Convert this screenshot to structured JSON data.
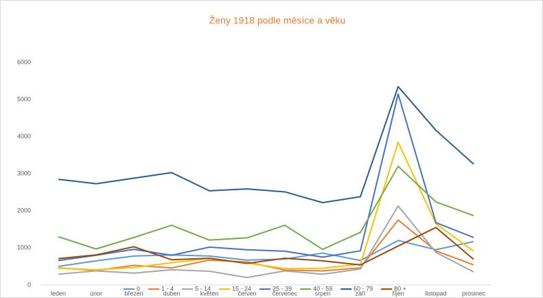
{
  "chart_data": {
    "type": "line",
    "title": "Ženy 1918 podle měsíce a věku",
    "categories": [
      "leden",
      "únor",
      "březen",
      "duben",
      "květen",
      "červen",
      "červenec",
      "srpen",
      "září",
      "říjen",
      "listopad",
      "prosinec"
    ],
    "ylim": [
      0,
      6000
    ],
    "yticks": [
      0,
      1000,
      2000,
      3000,
      4000,
      5000,
      6000
    ],
    "grid": false,
    "legend": "bottom",
    "series": [
      {
        "name": "0",
        "color": "#5b9bd5",
        "values": [
          500,
          650,
          780,
          810,
          780,
          670,
          700,
          860,
          660,
          1200,
          950,
          1170
        ]
      },
      {
        "name": "1 - 4",
        "color": "#ed7d31",
        "values": [
          460,
          390,
          530,
          460,
          670,
          620,
          400,
          380,
          460,
          1750,
          920,
          540
        ]
      },
      {
        "name": "5 - 14",
        "color": "#a5a5a5",
        "values": [
          290,
          380,
          320,
          410,
          370,
          200,
          380,
          290,
          430,
          2130,
          880,
          350
        ]
      },
      {
        "name": "15 - 24",
        "color": "#ffc000",
        "values": [
          450,
          410,
          470,
          600,
          720,
          590,
          440,
          450,
          560,
          3850,
          1650,
          910
        ]
      },
      {
        "name": "25 - 39",
        "color": "#4472c4",
        "values": [
          660,
          800,
          960,
          800,
          1020,
          950,
          910,
          750,
          920,
          5150,
          1680,
          1280
        ]
      },
      {
        "name": "40 - 59",
        "color": "#70ad47",
        "values": [
          1300,
          970,
          1280,
          1610,
          1210,
          1270,
          1610,
          960,
          1420,
          3200,
          2240,
          1870
        ]
      },
      {
        "name": "60 - 79",
        "color": "#255e91",
        "values": [
          2850,
          2730,
          2880,
          3030,
          2540,
          2590,
          2510,
          2220,
          2380,
          5350,
          4170,
          3260
        ]
      },
      {
        "name": "80 +",
        "color": "#9e480e",
        "values": [
          710,
          810,
          1030,
          680,
          720,
          580,
          720,
          650,
          540,
          1050,
          1550,
          690
        ]
      }
    ]
  }
}
